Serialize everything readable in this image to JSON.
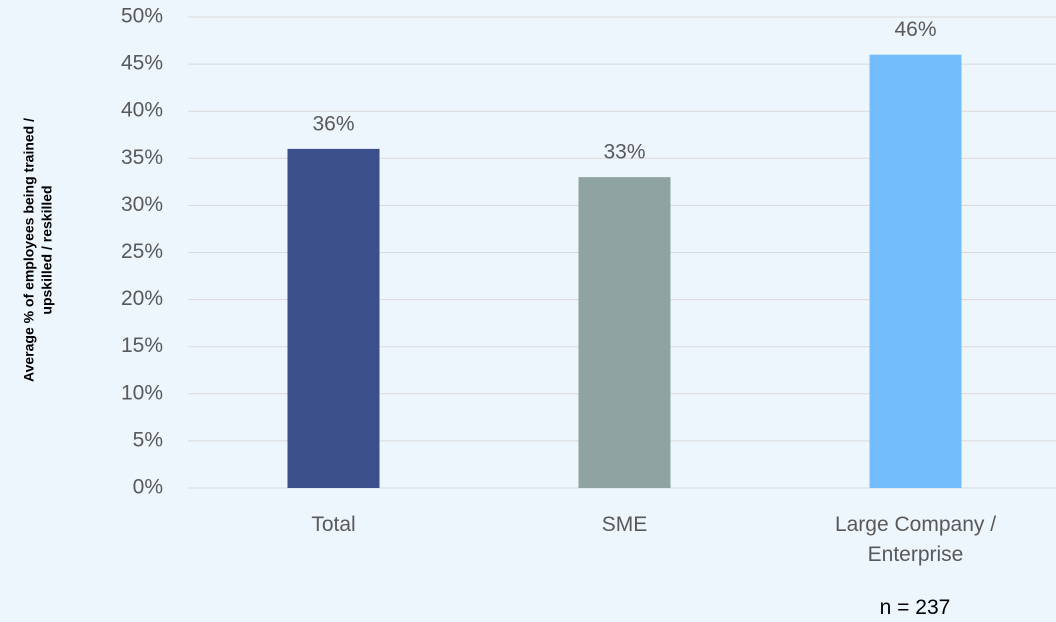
{
  "chart_data": {
    "type": "bar",
    "y_axis_label": [
      "Average % of employees being trained /",
      "upskilled / reskilled"
    ],
    "categories": [
      "Total",
      "SME",
      "Large Company / Enterprise"
    ],
    "values": [
      36,
      33,
      46
    ],
    "value_labels": [
      "36%",
      "33%",
      "46%"
    ],
    "colors": [
      "#3b4f8a",
      "#8fa4a0",
      "#74bdfd"
    ],
    "ylim": [
      0,
      50
    ],
    "yticks": [
      {
        "value": 0,
        "label": "0%"
      },
      {
        "value": 5,
        "label": "5%"
      },
      {
        "value": 10,
        "label": "10%"
      },
      {
        "value": 15,
        "label": "15%"
      },
      {
        "value": 20,
        "label": "20%"
      },
      {
        "value": 25,
        "label": "25%"
      },
      {
        "value": 30,
        "label": "30%"
      },
      {
        "value": 35,
        "label": "35%"
      },
      {
        "value": 40,
        "label": "40%"
      },
      {
        "value": 45,
        "label": "45%"
      },
      {
        "value": 50,
        "label": "50%"
      }
    ],
    "grid": true,
    "annotation": "n = 237"
  }
}
